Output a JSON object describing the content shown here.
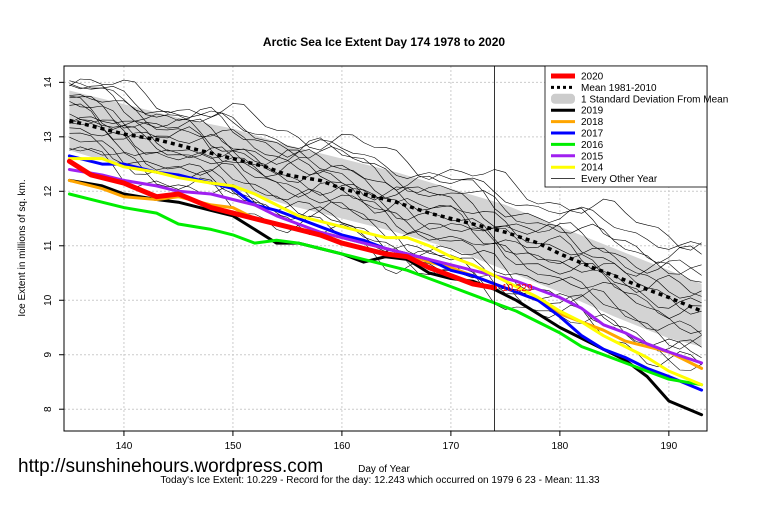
{
  "chart_data": {
    "type": "line",
    "title": "Arctic Sea Ice Extent Day 174 1978 to 2020",
    "xlabel": "Day of Year",
    "ylabel": "Ice Extent in millions of sq. km.",
    "xlim": [
      134.5,
      193.5
    ],
    "ylim": [
      7.6,
      14.3
    ],
    "x_ticks": [
      140,
      150,
      160,
      170,
      180,
      190
    ],
    "y_ticks": [
      8,
      9,
      10,
      11,
      12,
      13,
      14
    ],
    "grid": true,
    "vline_day": 174,
    "legend_position": "top-right",
    "annotation": {
      "text": "10.229",
      "x": 174.5,
      "y": 10.229
    },
    "std_band": {
      "name": "1 Standard Deviation From Mean",
      "color": "#d3d3d3",
      "x": [
        135,
        140,
        145,
        150,
        155,
        160,
        165,
        170,
        175,
        180,
        185,
        190,
        193
      ],
      "upper": [
        13.85,
        13.6,
        13.35,
        13.15,
        12.85,
        12.6,
        12.35,
        12.05,
        11.75,
        11.35,
        10.95,
        10.55,
        10.3
      ],
      "lower": [
        12.75,
        12.45,
        12.3,
        12.05,
        11.75,
        11.5,
        11.25,
        10.95,
        10.55,
        10.15,
        9.7,
        9.3,
        9.15
      ]
    },
    "mean_series": {
      "name": "Mean 1981-2010",
      "color": "#000000",
      "x": [
        135,
        137,
        140,
        143,
        145,
        148,
        150,
        153,
        155,
        158,
        160,
        163,
        165,
        168,
        170,
        173,
        175,
        178,
        180,
        183,
        185,
        188,
        190,
        193
      ],
      "y": [
        13.3,
        13.2,
        13.05,
        12.95,
        12.85,
        12.7,
        12.6,
        12.45,
        12.3,
        12.2,
        12.05,
        11.9,
        11.8,
        11.6,
        11.5,
        11.35,
        11.25,
        11.05,
        10.85,
        10.6,
        10.45,
        10.2,
        10.05,
        9.8
      ]
    },
    "series": [
      {
        "name": "2020",
        "color": "#ff0000",
        "width": 5,
        "x": [
          135,
          137,
          140,
          143,
          145,
          148,
          150,
          153,
          155,
          158,
          160,
          162,
          164,
          166,
          168,
          170,
          172,
          174
        ],
        "y": [
          12.55,
          12.3,
          12.15,
          11.9,
          11.95,
          11.7,
          11.6,
          11.45,
          11.35,
          11.2,
          11.05,
          10.95,
          10.85,
          10.8,
          10.6,
          10.45,
          10.3,
          10.229
        ]
      },
      {
        "name": "2019",
        "color": "#000000",
        "width": 3,
        "x": [
          135,
          138,
          140,
          143,
          145,
          148,
          150,
          152,
          154,
          156,
          158,
          160,
          162,
          164,
          166,
          168,
          170,
          172,
          174,
          176,
          178,
          180,
          182,
          184,
          186,
          188,
          190,
          193
        ],
        "y": [
          12.2,
          12.1,
          11.95,
          11.85,
          11.8,
          11.65,
          11.55,
          11.3,
          11.05,
          11.05,
          10.95,
          10.85,
          10.7,
          10.8,
          10.75,
          10.5,
          10.4,
          10.35,
          10.2,
          10.0,
          9.75,
          9.5,
          9.3,
          9.1,
          8.9,
          8.6,
          8.15,
          7.9
        ]
      },
      {
        "name": "2018",
        "color": "#ffa500",
        "width": 3,
        "x": [
          135,
          138,
          140,
          143,
          145,
          148,
          150,
          152,
          154,
          156,
          158,
          160,
          162,
          164,
          166,
          168,
          170,
          172,
          174,
          176,
          178,
          180,
          182,
          184,
          186,
          188,
          190,
          193
        ],
        "y": [
          12.2,
          12.05,
          11.9,
          11.85,
          11.9,
          11.75,
          11.7,
          11.5,
          11.4,
          11.3,
          11.25,
          11.15,
          11.05,
          10.95,
          10.85,
          10.7,
          10.6,
          10.45,
          10.3,
          10.15,
          10.0,
          9.75,
          9.6,
          9.45,
          9.25,
          9.15,
          9.05,
          8.75
        ]
      },
      {
        "name": "2017",
        "color": "#0000ff",
        "width": 3,
        "x": [
          135,
          138,
          140,
          143,
          145,
          148,
          150,
          152,
          154,
          156,
          158,
          160,
          162,
          164,
          166,
          168,
          170,
          172,
          174,
          176,
          178,
          180,
          182,
          184,
          186,
          188,
          190,
          193
        ],
        "y": [
          12.65,
          12.5,
          12.5,
          12.35,
          12.3,
          12.15,
          12.05,
          11.75,
          11.65,
          11.5,
          11.35,
          11.2,
          11.1,
          10.95,
          10.85,
          10.75,
          10.55,
          10.45,
          10.3,
          10.15,
          10.0,
          9.7,
          9.35,
          9.1,
          8.95,
          8.75,
          8.6,
          8.35
        ]
      },
      {
        "name": "2016",
        "color": "#00ee00",
        "width": 3,
        "x": [
          135,
          138,
          140,
          143,
          145,
          148,
          150,
          152,
          154,
          156,
          158,
          160,
          162,
          164,
          166,
          168,
          170,
          172,
          174,
          176,
          178,
          180,
          182,
          184,
          186,
          188,
          190,
          193
        ],
        "y": [
          11.95,
          11.8,
          11.7,
          11.6,
          11.4,
          11.3,
          11.2,
          11.05,
          11.1,
          11.05,
          10.95,
          10.85,
          10.75,
          10.65,
          10.55,
          10.4,
          10.25,
          10.1,
          9.95,
          9.8,
          9.6,
          9.4,
          9.15,
          9.0,
          8.85,
          8.7,
          8.55,
          8.45
        ]
      },
      {
        "name": "2015",
        "color": "#a020f0",
        "width": 3,
        "x": [
          135,
          138,
          140,
          143,
          145,
          148,
          150,
          152,
          154,
          156,
          158,
          160,
          162,
          164,
          166,
          168,
          170,
          172,
          174,
          176,
          178,
          180,
          182,
          184,
          186,
          188,
          190,
          193
        ],
        "y": [
          12.4,
          12.3,
          12.2,
          12.1,
          12.0,
          11.95,
          11.85,
          11.75,
          11.55,
          11.4,
          11.25,
          11.15,
          11.05,
          10.95,
          10.85,
          10.75,
          10.65,
          10.55,
          10.45,
          10.35,
          10.2,
          10.05,
          9.85,
          9.55,
          9.4,
          9.2,
          9.05,
          8.85
        ]
      },
      {
        "name": "2014",
        "color": "#ffff00",
        "width": 3,
        "x": [
          135,
          138,
          140,
          143,
          145,
          148,
          150,
          152,
          154,
          156,
          158,
          160,
          162,
          164,
          166,
          168,
          170,
          172,
          174,
          176,
          178,
          180,
          182,
          184,
          186,
          188,
          190,
          193
        ],
        "y": [
          12.6,
          12.6,
          12.45,
          12.35,
          12.25,
          12.15,
          12.1,
          11.95,
          11.75,
          11.55,
          11.45,
          11.35,
          11.25,
          11.15,
          11.15,
          11.0,
          10.8,
          10.65,
          10.45,
          10.25,
          10.05,
          9.8,
          9.6,
          9.35,
          9.15,
          8.95,
          8.7,
          8.45
        ]
      }
    ],
    "legend_other": "Every Other Year",
    "other_years": [
      {
        "start": 14.05,
        "end": 11.1,
        "wiggle": 0.18,
        "phase": 0.3
      },
      {
        "start": 13.95,
        "end": 10.5,
        "wiggle": 0.15,
        "phase": 1.1
      },
      {
        "start": 13.85,
        "end": 10.7,
        "wiggle": 0.2,
        "phase": 2.0
      },
      {
        "start": 13.75,
        "end": 10.1,
        "wiggle": 0.14,
        "phase": 0.7
      },
      {
        "start": 13.65,
        "end": 10.4,
        "wiggle": 0.17,
        "phase": 2.6
      },
      {
        "start": 13.55,
        "end": 9.8,
        "wiggle": 0.16,
        "phase": 1.7
      },
      {
        "start": 13.45,
        "end": 10.0,
        "wiggle": 0.2,
        "phase": 3.1
      },
      {
        "start": 13.35,
        "end": 9.5,
        "wiggle": 0.13,
        "phase": 0.2
      },
      {
        "start": 13.3,
        "end": 9.7,
        "wiggle": 0.18,
        "phase": 1.4
      },
      {
        "start": 13.2,
        "end": 9.3,
        "wiggle": 0.15,
        "phase": 2.3
      },
      {
        "start": 13.1,
        "end": 9.2,
        "wiggle": 0.19,
        "phase": 0.9
      },
      {
        "start": 13.0,
        "end": 8.9,
        "wiggle": 0.14,
        "phase": 2.8
      },
      {
        "start": 12.9,
        "end": 9.0,
        "wiggle": 0.17,
        "phase": 1.9
      },
      {
        "start": 12.8,
        "end": 8.8,
        "wiggle": 0.16,
        "phase": 0.5
      },
      {
        "start": 12.7,
        "end": 8.7,
        "wiggle": 0.2,
        "phase": 2.2
      },
      {
        "start": 13.9,
        "end": 10.9,
        "wiggle": 0.12,
        "phase": 1.6
      },
      {
        "start": 13.6,
        "end": 10.25,
        "wiggle": 0.18,
        "phase": 3.4
      },
      {
        "start": 13.4,
        "end": 9.9,
        "wiggle": 0.15,
        "phase": 0.1
      }
    ]
  },
  "footer": {
    "watermark": "http://sunshinehours.wordpress.com",
    "summary": "Today's Ice Extent: 10.229  - Record for the day: 12.243 which occurred on 1979 6 23  - Mean: 11.33"
  }
}
